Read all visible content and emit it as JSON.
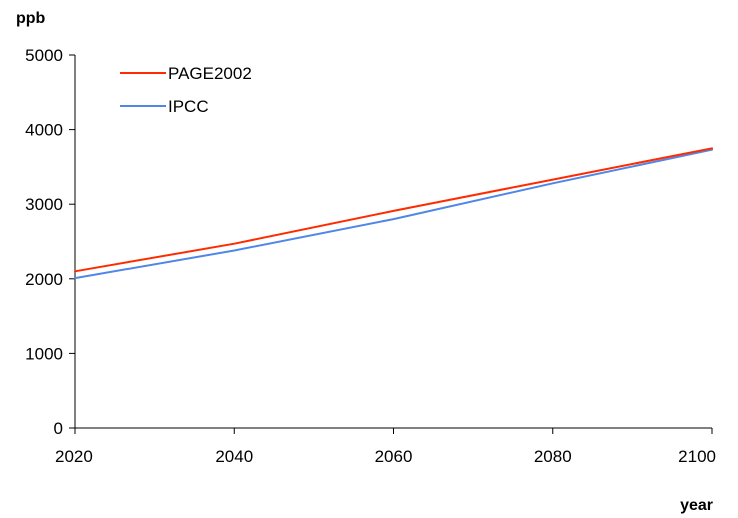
{
  "chart_data": {
    "type": "line",
    "title": "",
    "xlabel": "year",
    "ylabel": "ppb",
    "x": [
      2020,
      2040,
      2060,
      2080,
      2100
    ],
    "xlim": [
      2020,
      2100
    ],
    "ylim": [
      0,
      5000
    ],
    "x_ticks": [
      "2020",
      "2040",
      "2060",
      "2080",
      "2100"
    ],
    "y_ticks": [
      "0",
      "1000",
      "2000",
      "3000",
      "4000",
      "5000"
    ],
    "grid": false,
    "legend_position": "top-left",
    "series": [
      {
        "name": "PAGE2002",
        "color": "#ff2a00",
        "values": [
          2100,
          2470,
          2910,
          3330,
          3750
        ]
      },
      {
        "name": "IPCC",
        "color": "#4f86e8",
        "values": [
          2010,
          2380,
          2800,
          3280,
          3730
        ]
      }
    ]
  }
}
